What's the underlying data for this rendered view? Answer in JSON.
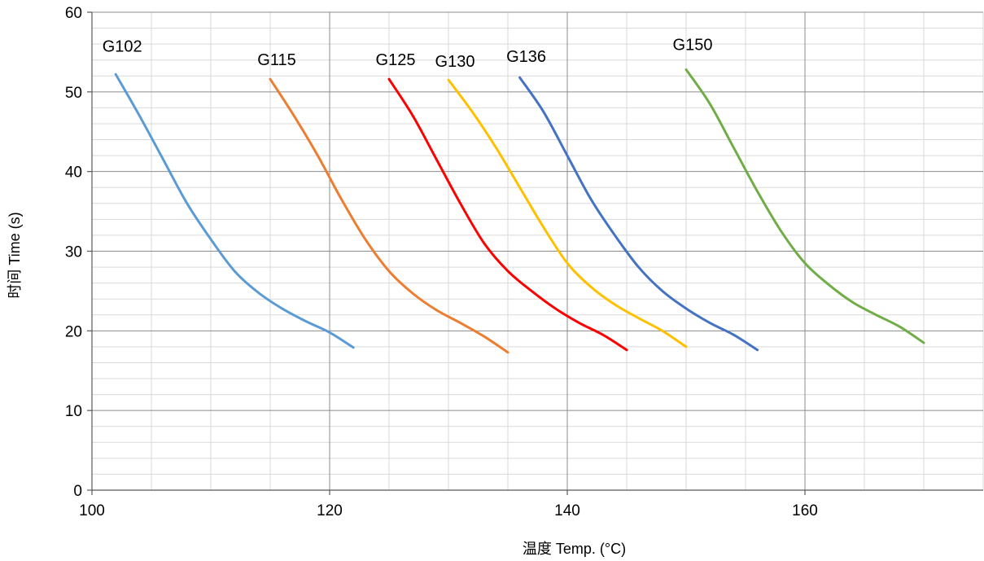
{
  "chart_data": {
    "type": "line",
    "title": "",
    "xlabel": "温度 Temp. (°C)",
    "ylabel": "时间 Time (s)",
    "xlim": [
      100,
      175
    ],
    "ylim": [
      0,
      60
    ],
    "x_ticks": [
      100,
      120,
      140,
      160
    ],
    "y_ticks": [
      0,
      10,
      20,
      30,
      40,
      50,
      60
    ],
    "grid": "major and minor",
    "legend": "none (series labeled directly above curves)",
    "series": [
      {
        "name": "G102",
        "color": "#5B9BD5",
        "x": [
          102,
          104,
          106,
          108,
          110,
          112,
          114,
          116,
          118,
          120,
          122
        ],
        "y": [
          52.2,
          47.0,
          41.5,
          36.0,
          31.5,
          27.5,
          24.8,
          22.8,
          21.2,
          19.8,
          17.9
        ]
      },
      {
        "name": "G115",
        "color": "#ED7D31",
        "x": [
          115,
          117,
          119,
          121,
          123,
          125,
          127,
          129,
          131,
          133,
          135
        ],
        "y": [
          51.6,
          47.0,
          42.0,
          36.5,
          31.5,
          27.5,
          24.7,
          22.6,
          21.0,
          19.3,
          17.3
        ]
      },
      {
        "name": "G125",
        "color": "#FF0000",
        "x": [
          125,
          127,
          129,
          131,
          133,
          135,
          137,
          139,
          141,
          143,
          145
        ],
        "y": [
          51.6,
          47.0,
          41.5,
          36.0,
          31.0,
          27.5,
          25.0,
          22.8,
          21.0,
          19.5,
          17.6
        ]
      },
      {
        "name": "G130",
        "color": "#FFC000",
        "x": [
          130,
          132,
          134,
          136,
          138,
          140,
          142,
          144,
          146,
          148,
          150
        ],
        "y": [
          51.5,
          47.5,
          43.0,
          38.0,
          33.0,
          28.5,
          25.5,
          23.3,
          21.6,
          20.0,
          18.0
        ]
      },
      {
        "name": "G136",
        "color": "#4472C4",
        "x": [
          136,
          138,
          140,
          142,
          144,
          146,
          148,
          150,
          152,
          154,
          156
        ],
        "y": [
          51.8,
          47.5,
          42.0,
          36.5,
          32.0,
          28.0,
          25.0,
          22.8,
          21.0,
          19.5,
          17.6
        ]
      },
      {
        "name": "G150",
        "color": "#70AD47",
        "x": [
          150,
          152,
          154,
          156,
          158,
          160,
          162,
          164,
          166,
          168,
          170
        ],
        "y": [
          52.8,
          48.5,
          43.0,
          37.5,
          32.5,
          28.5,
          25.8,
          23.6,
          22.0,
          20.5,
          18.5
        ]
      }
    ]
  }
}
